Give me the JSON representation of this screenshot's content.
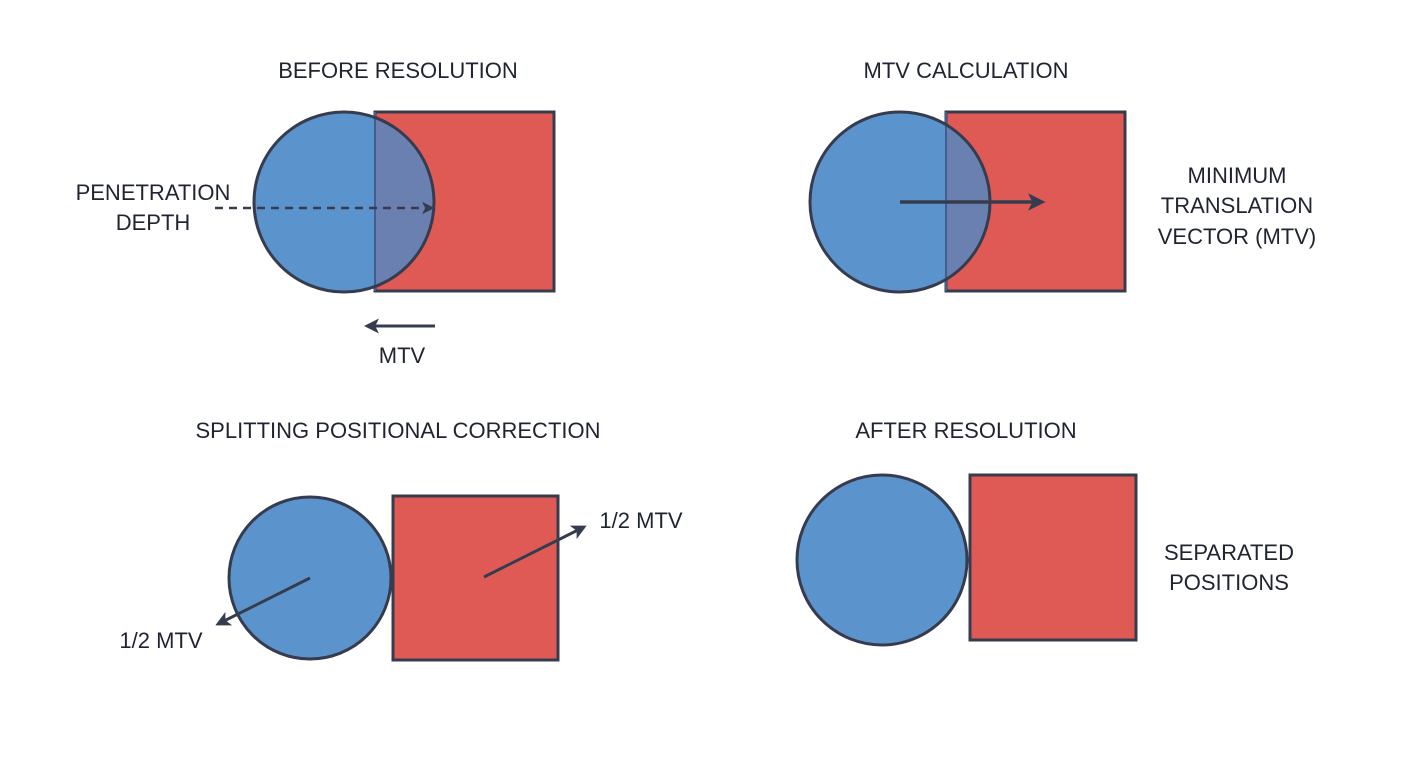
{
  "colors": {
    "circle_fill": "#5b93cc",
    "square_fill": "#e05a55",
    "overlap_fill": "#6a80b1",
    "stroke": "#363c4e",
    "background": "#ffffff"
  },
  "panels": [
    {
      "title": "BEFORE RESOLUTION",
      "labels": [
        "PENETRATION",
        "DEPTH",
        "MTV"
      ]
    },
    {
      "title": "MTV CALCULATION",
      "labels": [
        "MINIMUM",
        "TRANSLATION",
        "VECTOR (MTV)"
      ]
    },
    {
      "title": "SPLITTING POSITIONAL CORRECTION",
      "labels": [
        "1/2 MTV",
        "1/2 MTV"
      ]
    },
    {
      "title": "AFTER RESOLUTION",
      "labels": [
        "SEPARATED",
        "POSITIONS"
      ]
    }
  ]
}
